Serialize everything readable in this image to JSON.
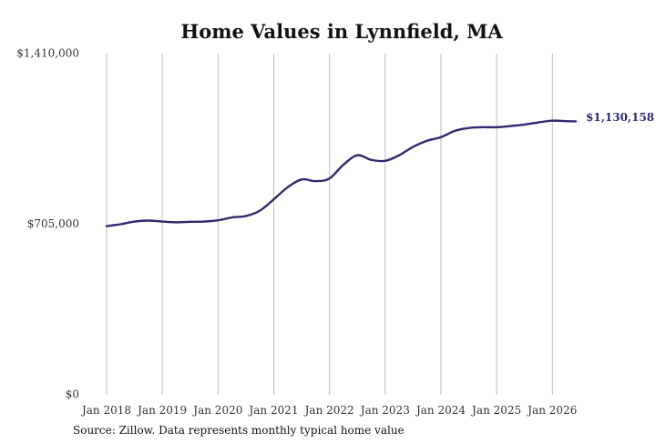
{
  "colors": {
    "series": "#2e2a6e",
    "grid": "#bdbdbd",
    "text": "#333333"
  },
  "chart_data": {
    "type": "line",
    "title": "Home Values in Lynnfield, MA",
    "xlabel": "",
    "ylabel": "",
    "source_note": "Source: Zillow. Data represents monthly typical home value",
    "y_ticks": [
      {
        "value": 0,
        "label": "$0"
      },
      {
        "value": 705000,
        "label": "$705,000"
      },
      {
        "value": 1410000,
        "label": "$1,410,000"
      }
    ],
    "ylim": [
      0,
      1410000
    ],
    "x_ticks": [
      {
        "value": 2018.0,
        "label": "Jan 2018"
      },
      {
        "value": 2019.0,
        "label": "Jan 2019"
      },
      {
        "value": 2020.0,
        "label": "Jan 2020"
      },
      {
        "value": 2021.0,
        "label": "Jan 2021"
      },
      {
        "value": 2022.0,
        "label": "Jan 2022"
      },
      {
        "value": 2023.0,
        "label": "Jan 2023"
      },
      {
        "value": 2024.0,
        "label": "Jan 2024"
      },
      {
        "value": 2025.0,
        "label": "Jan 2025"
      },
      {
        "value": 2026.0,
        "label": "Jan 2026"
      }
    ],
    "xlim": [
      2018.0,
      2026.42
    ],
    "grid": "vertical",
    "series": [
      {
        "points": [
          [
            2018.0,
            697000
          ],
          [
            2018.25,
            705000
          ],
          [
            2018.5,
            716000
          ],
          [
            2018.75,
            720000
          ],
          [
            2019.0,
            716000
          ],
          [
            2019.25,
            713000
          ],
          [
            2019.5,
            715000
          ],
          [
            2019.75,
            716000
          ],
          [
            2020.0,
            721000
          ],
          [
            2020.25,
            733000
          ],
          [
            2020.5,
            739000
          ],
          [
            2020.75,
            761000
          ],
          [
            2021.0,
            808000
          ],
          [
            2021.25,
            858000
          ],
          [
            2021.5,
            890000
          ],
          [
            2021.75,
            883000
          ],
          [
            2022.0,
            894000
          ],
          [
            2022.25,
            951000
          ],
          [
            2022.5,
            990000
          ],
          [
            2022.75,
            971000
          ],
          [
            2023.0,
            967000
          ],
          [
            2023.25,
            990000
          ],
          [
            2023.5,
            1025000
          ],
          [
            2023.75,
            1050000
          ],
          [
            2024.0,
            1065000
          ],
          [
            2024.25,
            1091000
          ],
          [
            2024.5,
            1103000
          ],
          [
            2024.75,
            1106000
          ],
          [
            2025.0,
            1106000
          ],
          [
            2025.25,
            1111000
          ],
          [
            2025.5,
            1117000
          ],
          [
            2025.75,
            1126000
          ],
          [
            2026.0,
            1133000
          ],
          [
            2026.25,
            1131000
          ],
          [
            2026.42,
            1130158
          ]
        ],
        "end_label": "$1,130,158"
      }
    ]
  }
}
